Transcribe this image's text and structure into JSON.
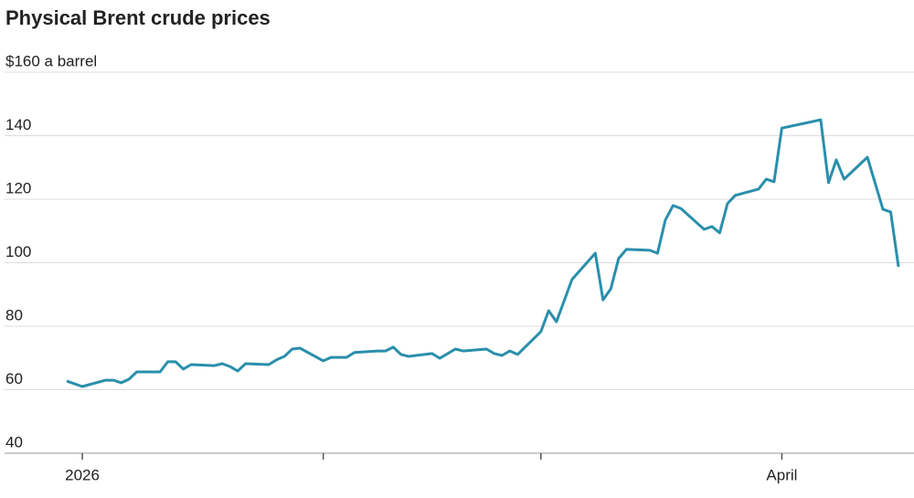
{
  "chart_data": {
    "type": "line",
    "title": "Physical Brent crude prices",
    "xlim": [
      -10,
      107
    ],
    "xticks": [
      {
        "value": 0,
        "label": "2026"
      },
      {
        "value": 90,
        "label": "April"
      }
    ],
    "xticks_minor": [
      31,
      59
    ],
    "ylim": [
      40,
      160
    ],
    "yticks": [
      40,
      60,
      80,
      100,
      120,
      140,
      {
        "value": 160,
        "label": "$160 a barrel"
      }
    ],
    "grid": true,
    "series": [
      {
        "color": "#2a8fab",
        "x": [
          -2,
          0,
          3,
          4,
          5,
          6,
          7,
          10,
          11,
          12,
          13,
          14,
          17,
          18,
          19,
          20,
          21,
          24,
          25,
          26,
          27,
          28,
          31,
          32,
          34,
          35,
          38,
          39,
          40,
          41,
          42,
          45,
          46,
          48,
          49,
          52,
          53,
          54,
          55,
          56,
          59,
          60,
          61,
          63,
          66,
          67,
          68,
          69,
          70,
          73,
          74,
          75,
          76,
          77,
          80,
          81,
          82,
          83,
          84,
          87,
          88,
          89,
          90,
          95,
          96,
          97,
          98,
          101,
          103,
          104,
          105
        ],
        "values": [
          62.7,
          61.0,
          63.0,
          63.0,
          62.2,
          63.3,
          65.6,
          65.6,
          68.8,
          68.8,
          66.5,
          67.9,
          67.6,
          68.2,
          67.3,
          65.9,
          68.2,
          67.9,
          69.4,
          70.5,
          72.8,
          73.1,
          69.1,
          70.2,
          70.2,
          71.7,
          72.2,
          72.2,
          73.4,
          71.1,
          70.5,
          71.4,
          69.9,
          72.8,
          72.2,
          72.8,
          71.4,
          70.8,
          72.2,
          71.1,
          78.3,
          84.9,
          81.4,
          94.7,
          103.0,
          88.3,
          91.8,
          101.3,
          104.2,
          103.9,
          103.0,
          113.4,
          118.0,
          117.1,
          110.5,
          111.4,
          109.4,
          118.6,
          121.2,
          123.2,
          126.3,
          125.5,
          142.4,
          145.0,
          125.2,
          132.4,
          126.3,
          133.2,
          116.8,
          116.0,
          98.7
        ]
      }
    ]
  }
}
